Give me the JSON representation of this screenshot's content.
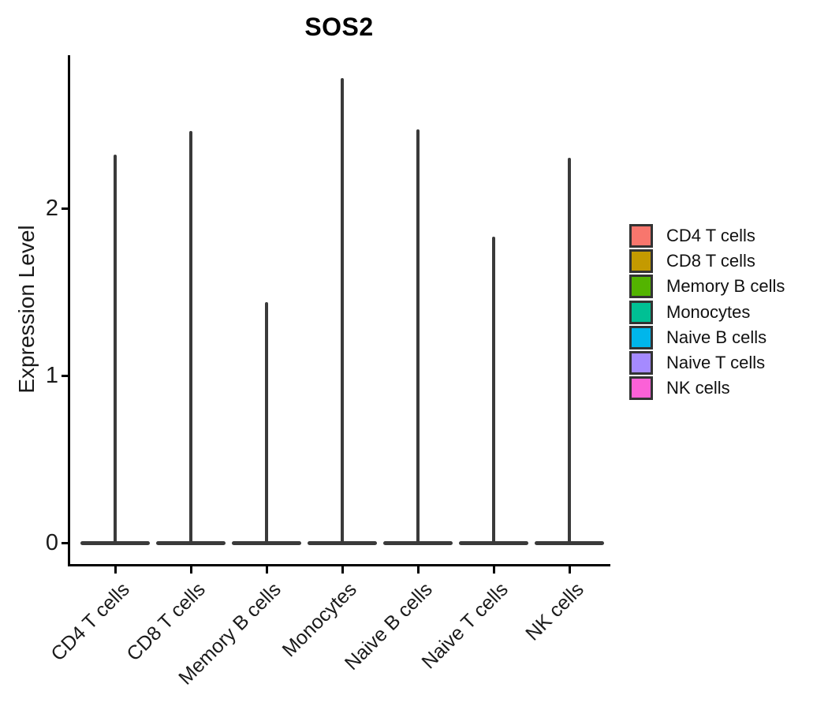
{
  "title": "SOS2",
  "y_axis": {
    "label": "Expression Level",
    "ticks": [
      0,
      1,
      2
    ]
  },
  "x_axis": {
    "categories": [
      "CD4 T cells",
      "CD8 T cells",
      "Memory B cells",
      "Monocytes",
      "Naive B cells",
      "Naive T cells",
      "NK cells"
    ]
  },
  "legend": {
    "items": [
      {
        "label": "CD4 T cells",
        "color": "#F8766D"
      },
      {
        "label": "CD8 T cells",
        "color": "#C49A00"
      },
      {
        "label": "Memory B cells",
        "color": "#53B400"
      },
      {
        "label": "Monocytes",
        "color": "#00C094"
      },
      {
        "label": "Naive B cells",
        "color": "#00B6EB"
      },
      {
        "label": "Naive T cells",
        "color": "#A58AFF"
      },
      {
        "label": "NK cells",
        "color": "#FB61D7"
      }
    ]
  },
  "chart_data": {
    "type": "violin",
    "title": "SOS2",
    "xlabel": "",
    "ylabel": "Expression Level",
    "categories": [
      "CD4 T cells",
      "CD8 T cells",
      "Memory B cells",
      "Monocytes",
      "Naive B cells",
      "Naive T cells",
      "NK cells"
    ],
    "series": [
      {
        "name": "max_expression",
        "values": [
          2.32,
          2.46,
          1.44,
          2.78,
          2.47,
          1.83,
          2.3
        ]
      },
      {
        "name": "density_mode_expression",
        "values": [
          0,
          0,
          0,
          0,
          0,
          0,
          0
        ]
      }
    ],
    "distribution_shape": "mass concentrated at 0 (wide flat base) with a thin spike reaching the max value",
    "y_ticks": [
      0,
      1,
      2
    ],
    "ylim": [
      -0.13,
      2.93
    ],
    "grid": false,
    "legend_position": "right",
    "violin_outline_color": "#3a3a3a",
    "category_colors": [
      "#F8766D",
      "#C49A00",
      "#53B400",
      "#00C094",
      "#00B6EB",
      "#A58AFF",
      "#FB61D7"
    ]
  }
}
